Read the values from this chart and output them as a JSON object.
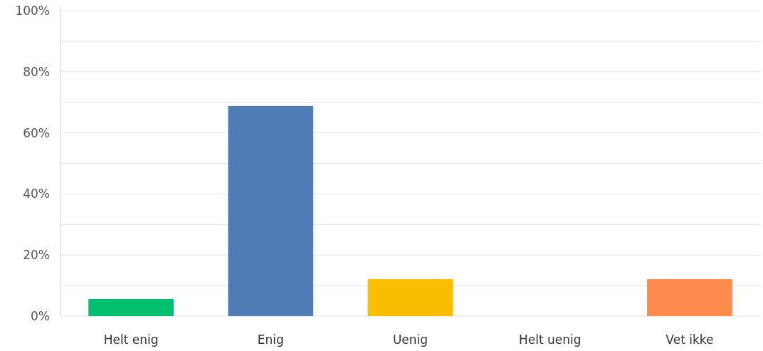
{
  "chart_data": {
    "type": "bar",
    "categories": [
      "Helt enig",
      "Enig",
      "Uenig",
      "Helt uenig",
      "Vet ikke"
    ],
    "values": [
      5.6,
      68.8,
      12.1,
      0,
      12.1
    ],
    "colors": [
      "#00bf6f",
      "#507cb6",
      "#f9be00",
      "#6bc8cd",
      "#ff8b4f"
    ],
    "ylim": [
      0,
      100
    ],
    "yticks": [
      {
        "value": 0,
        "label": "0%"
      },
      {
        "value": 10,
        "label": null
      },
      {
        "value": 20,
        "label": "20%"
      },
      {
        "value": 30,
        "label": null
      },
      {
        "value": 40,
        "label": "40%"
      },
      {
        "value": 50,
        "label": null
      },
      {
        "value": 60,
        "label": "60%"
      },
      {
        "value": 70,
        "label": null
      },
      {
        "value": 80,
        "label": "80%"
      },
      {
        "value": 90,
        "label": null
      },
      {
        "value": 100,
        "label": "100%"
      }
    ],
    "grid": true
  }
}
